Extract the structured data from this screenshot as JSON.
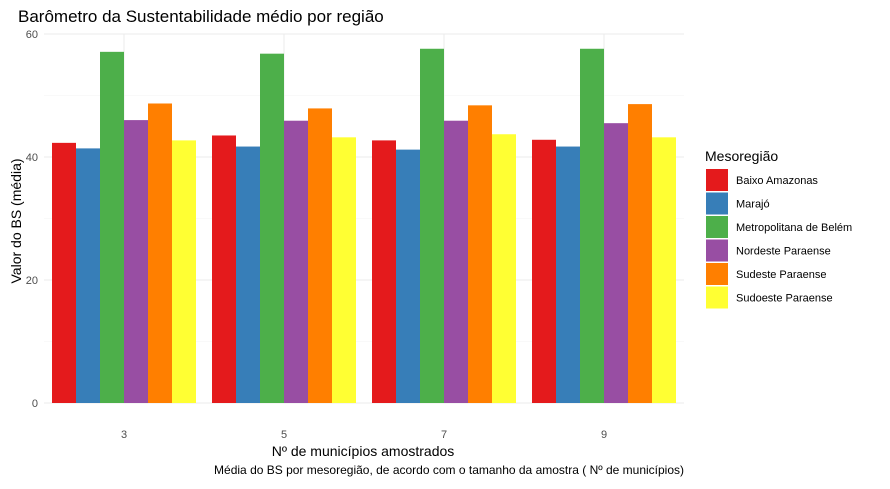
{
  "chart_data": {
    "type": "bar",
    "title": "Barômetro da Sustentabilidade médio por região",
    "xlabel": "Nº de municípios amostrados",
    "ylabel": "Valor do BS (média)",
    "caption": "Média do BS por mesoregião, de acordo com o tamanho da amostra ( Nº de municípios)",
    "categories": [
      "3",
      "5",
      "7",
      "9"
    ],
    "ylim": [
      0,
      60
    ],
    "yticks": [
      0,
      20,
      40,
      60
    ],
    "grid": true,
    "legend": {
      "title": "Mesoregião",
      "position": "right"
    },
    "series": [
      {
        "name": "Baixo Amazonas",
        "color": "#E41A1C",
        "values": [
          42.3,
          43.5,
          42.7,
          42.8
        ]
      },
      {
        "name": "Marajó",
        "color": "#377EB8",
        "values": [
          41.4,
          41.7,
          41.2,
          41.7
        ]
      },
      {
        "name": "Metropolitana de Belém",
        "color": "#4DAF4A",
        "values": [
          57.1,
          56.8,
          57.6,
          57.6
        ]
      },
      {
        "name": "Nordeste Paraense",
        "color": "#984EA3",
        "values": [
          46.0,
          45.9,
          45.9,
          45.5
        ]
      },
      {
        "name": "Sudeste Paraense",
        "color": "#FF7F00",
        "values": [
          48.7,
          47.9,
          48.4,
          48.6
        ]
      },
      {
        "name": "Sudoeste Paraense",
        "color": "#FFFF33",
        "values": [
          42.7,
          43.2,
          43.7,
          43.2
        ]
      }
    ]
  }
}
